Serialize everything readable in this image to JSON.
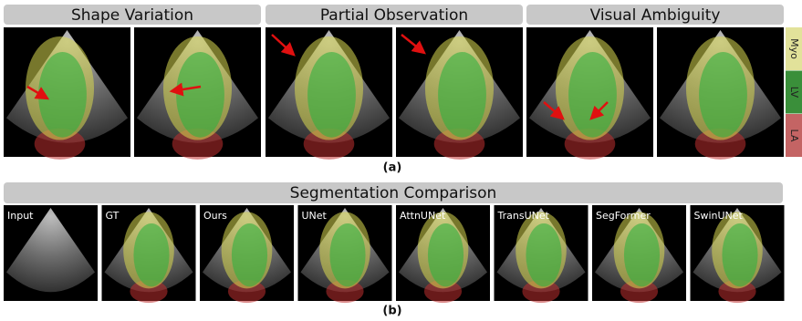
{
  "figure_a": {
    "groups": [
      {
        "title": "Shape Variation"
      },
      {
        "title": "Partial Observation"
      },
      {
        "title": "Visual Ambiguity"
      }
    ],
    "legend": [
      "Myo",
      "LV",
      "LA"
    ],
    "caption": "(a)"
  },
  "figure_b": {
    "title": "Segmentation Comparison",
    "panels": [
      "Input",
      "GT",
      "Ours",
      "UNet",
      "AttnUNet",
      "TransUNet",
      "SegFormer",
      "SwinUNet"
    ],
    "caption": "(b)"
  }
}
